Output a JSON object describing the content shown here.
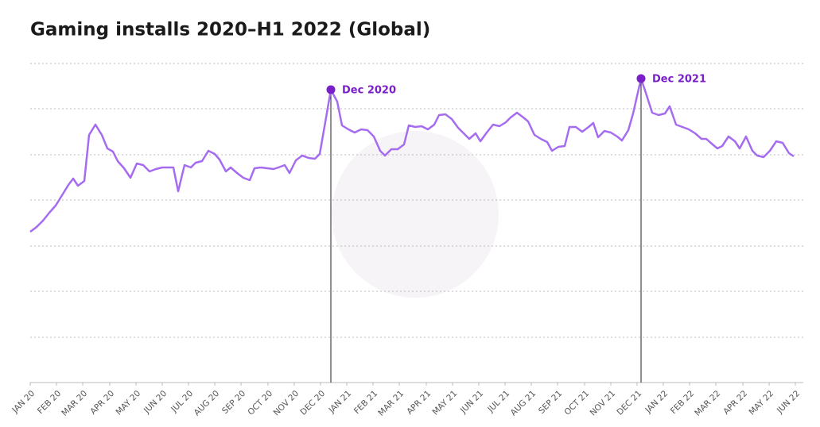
{
  "chart_data": {
    "type": "line",
    "title": "Gaming installs 2020–H1 2022 (Global)",
    "xlim": [
      0,
      962
    ],
    "ylim": [
      0,
      402
    ],
    "xticks": [
      {
        "value": 0,
        "label": "JAN 20"
      },
      {
        "value": 33,
        "label": "FEB 20"
      },
      {
        "value": 66,
        "label": "MAR 20"
      },
      {
        "value": 100,
        "label": "APR 20"
      },
      {
        "value": 133,
        "label": "MAY 20"
      },
      {
        "value": 166,
        "label": "JUN 20"
      },
      {
        "value": 199,
        "label": "JUL 20"
      },
      {
        "value": 232,
        "label": "AUG 20"
      },
      {
        "value": 265,
        "label": "SEP 20"
      },
      {
        "value": 299,
        "label": "OCT 20"
      },
      {
        "value": 332,
        "label": "NOV 20"
      },
      {
        "value": 365,
        "label": "DEC 20"
      },
      {
        "value": 398,
        "label": "JAN 21"
      },
      {
        "value": 431,
        "label": "FEB 21"
      },
      {
        "value": 464,
        "label": "MAR 21"
      },
      {
        "value": 498,
        "label": "APR 21"
      },
      {
        "value": 531,
        "label": "MAY 21"
      },
      {
        "value": 564,
        "label": "JUN 21"
      },
      {
        "value": 597,
        "label": "JUL 21"
      },
      {
        "value": 630,
        "label": "AUG 21"
      },
      {
        "value": 663,
        "label": "SEP 21"
      },
      {
        "value": 697,
        "label": "OCT 21"
      },
      {
        "value": 730,
        "label": "NOV 21"
      },
      {
        "value": 763,
        "label": "DEC 21"
      },
      {
        "value": 796,
        "label": "JAN 22"
      },
      {
        "value": 829,
        "label": "FEB 22"
      },
      {
        "value": 862,
        "label": "MAR 22"
      },
      {
        "value": 896,
        "label": "APR 22"
      },
      {
        "value": 929,
        "label": "MAY 22"
      },
      {
        "value": 962,
        "label": "JUN 22"
      }
    ],
    "yticks": [
      0,
      57,
      115,
      172,
      230,
      287,
      345,
      402
    ],
    "grid": true,
    "x": [
      0,
      8,
      16,
      24,
      32,
      40,
      48,
      54,
      60,
      68,
      74,
      82,
      90,
      97,
      104,
      110,
      118,
      126,
      134,
      142,
      150,
      158,
      166,
      174,
      180,
      186,
      194,
      202,
      208,
      216,
      224,
      232,
      238,
      246,
      252,
      260,
      268,
      276,
      282,
      290,
      298,
      306,
      312,
      320,
      326,
      334,
      342,
      350,
      358,
      364,
      372,
      378,
      386,
      392,
      400,
      408,
      416,
      424,
      432,
      440,
      446,
      454,
      462,
      470,
      476,
      484,
      492,
      500,
      508,
      514,
      522,
      530,
      538,
      546,
      552,
      560,
      566,
      574,
      582,
      590,
      598,
      604,
      612,
      620,
      626,
      634,
      642,
      650,
      656,
      664,
      672,
      678,
      686,
      694,
      702,
      708,
      714,
      722,
      730,
      738,
      744,
      752,
      758,
      768,
      774,
      782,
      790,
      798,
      804,
      812,
      820,
      828,
      836,
      844,
      850,
      858,
      864,
      870,
      878,
      886,
      892,
      900,
      908,
      914,
      922,
      930,
      938,
      946,
      954,
      960
    ],
    "series": [
      {
        "color": "#a66cf0",
        "values": [
          190,
          196,
          204,
          214,
          223,
          236,
          249,
          257,
          248,
          254,
          312,
          325,
          312,
          295,
          291,
          279,
          270,
          258,
          276,
          274,
          266,
          269,
          271,
          271,
          271,
          241,
          274,
          271,
          277,
          279,
          292,
          288,
          281,
          266,
          271,
          264,
          258,
          255,
          270,
          271,
          270,
          269,
          271,
          274,
          264,
          280,
          286,
          283,
          282,
          288,
          334,
          369,
          354,
          324,
          319,
          315,
          319,
          318,
          310,
          292,
          286,
          294,
          294,
          300,
          324,
          322,
          323,
          319,
          325,
          337,
          338,
          332,
          321,
          313,
          307,
          314,
          304,
          315,
          325,
          323,
          328,
          334,
          340,
          334,
          329,
          312,
          307,
          303,
          292,
          297,
          298,
          322,
          322,
          316,
          322,
          327,
          309,
          317,
          315,
          310,
          305,
          318,
          339,
          383,
          365,
          340,
          337,
          339,
          348,
          325,
          322,
          319,
          314,
          307,
          307,
          300,
          295,
          298,
          310,
          304,
          295,
          310,
          292,
          286,
          284,
          292,
          304,
          302,
          289,
          285
        ]
      }
    ],
    "annotations": [
      {
        "text": "Dec 2020",
        "x": 378,
        "y": 369
      },
      {
        "text": "Dec 2021",
        "x": 768,
        "y": 383
      }
    ]
  }
}
